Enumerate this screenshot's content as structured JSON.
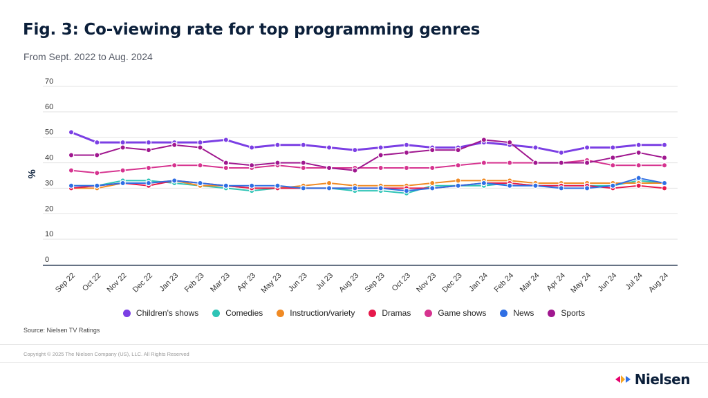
{
  "header": {
    "title": "Fig. 3: Co-viewing rate for top programming genres",
    "subtitle": "From Sept. 2022 to Aug. 2024"
  },
  "chart_data": {
    "type": "line",
    "title": "Fig. 3: Co-viewing rate for top programming genres",
    "subtitle": "From Sept. 2022 to Aug. 2024",
    "xlabel": "",
    "ylabel": "%",
    "ylim": [
      0,
      70
    ],
    "yticks": [
      0,
      10,
      20,
      30,
      40,
      50,
      60,
      70
    ],
    "grid": true,
    "legend_position": "bottom",
    "categories": [
      "Sep 22",
      "Oct 22",
      "Nov 22",
      "Dec 22",
      "Jan 23",
      "Feb 23",
      "Mar 23",
      "Apr 23",
      "May 23",
      "Jun 23",
      "Jul 23",
      "Aug 23",
      "Sep 23",
      "Oct 23",
      "Nov 23",
      "Dec 23",
      "Jan 24",
      "Feb 24",
      "Mar 24",
      "Apr 24",
      "May 24",
      "Jun 24",
      "Jul 24",
      "Aug 24"
    ],
    "series": [
      {
        "name": "Children's shows",
        "color": "#7b3fe4",
        "values": [
          52,
          48,
          48,
          48,
          48,
          48,
          49,
          46,
          47,
          47,
          46,
          45,
          46,
          47,
          46,
          46,
          48,
          47,
          46,
          44,
          46,
          46,
          47,
          47
        ]
      },
      {
        "name": "Comedies",
        "color": "#2ec4b6",
        "values": [
          31,
          31,
          33,
          33,
          32,
          31,
          30,
          29,
          30,
          30,
          30,
          29,
          29,
          28,
          31,
          31,
          31,
          32,
          31,
          31,
          31,
          31,
          33,
          32
        ]
      },
      {
        "name": "Instruction/variety",
        "color": "#f08a24",
        "values": [
          30,
          30,
          32,
          32,
          33,
          31,
          31,
          30,
          30,
          31,
          32,
          31,
          31,
          31,
          32,
          33,
          33,
          33,
          32,
          32,
          32,
          32,
          32,
          32
        ]
      },
      {
        "name": "Dramas",
        "color": "#e6194b",
        "values": [
          30,
          31,
          32,
          31,
          33,
          32,
          31,
          30,
          30,
          30,
          30,
          30,
          30,
          30,
          30,
          31,
          32,
          32,
          31,
          31,
          31,
          30,
          31,
          30
        ]
      },
      {
        "name": "Game shows",
        "color": "#d6338f",
        "values": [
          37,
          36,
          37,
          38,
          39,
          39,
          38,
          38,
          39,
          38,
          38,
          38,
          38,
          38,
          38,
          39,
          40,
          40,
          40,
          40,
          41,
          39,
          39,
          39
        ]
      },
      {
        "name": "News",
        "color": "#2f6fe4",
        "values": [
          31,
          31,
          32,
          32,
          33,
          32,
          31,
          31,
          31,
          30,
          30,
          30,
          30,
          29,
          30,
          31,
          32,
          31,
          31,
          30,
          30,
          31,
          34,
          32
        ]
      },
      {
        "name": "Sports",
        "color": "#a0178f",
        "values": [
          43,
          43,
          46,
          45,
          47,
          46,
          40,
          39,
          40,
          40,
          38,
          37,
          43,
          44,
          45,
          45,
          49,
          48,
          40,
          40,
          40,
          42,
          44,
          42
        ]
      }
    ]
  },
  "footer": {
    "source": "Source: Nielsen TV Ratings",
    "copyright": "Copyright © 2025 The Nielsen Company (US), LLC. All Rights Reserved",
    "brand": "Nielsen"
  },
  "colors": {
    "title": "#0b1f3a",
    "grid": "#e3e3e3",
    "axis": "#0b1f3a",
    "brand_pink": "#e5006d",
    "brand_orange": "#f5a623",
    "brand_blue": "#2f6fe4",
    "brand_purple": "#7b3fe4"
  }
}
